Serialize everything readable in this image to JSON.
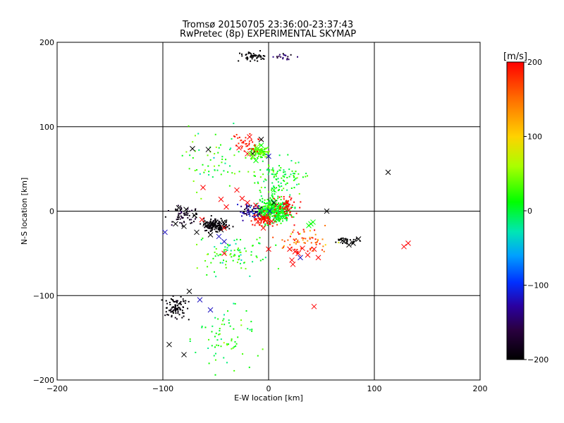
{
  "chart_data": {
    "type": "scatter",
    "title": "Tromsø 20150705 23:36:00-23:37:43",
    "subtitle": "RwPretec (8p) EXPERIMENTAL SKYMAP",
    "xlabel": "E-W location [km]",
    "ylabel": "N-S location [km]",
    "xlim": [
      -200,
      200
    ],
    "ylim": [
      -200,
      200
    ],
    "xticks": [
      -200,
      -100,
      0,
      100,
      200
    ],
    "yticks": [
      -200,
      -100,
      0,
      100,
      200
    ],
    "grid": true,
    "colorbar": {
      "label": "[m/s]",
      "range": [
        -200,
        200
      ],
      "ticks": [
        200,
        100,
        0,
        -100,
        -200
      ],
      "colors": [
        "#ff0000",
        "#ffa500",
        "#ffff00",
        "#00ff00",
        "#00e5c0",
        "#0060ff",
        "#0000cc",
        "#400060",
        "#000000"
      ]
    },
    "markers": {
      "cross": [
        {
          "x": -85,
          "y": 4,
          "v": -200
        },
        {
          "x": -78,
          "y": 2,
          "v": -200
        },
        {
          "x": -70,
          "y": -5,
          "v": -200
        },
        {
          "x": -60,
          "y": -15,
          "v": -200
        },
        {
          "x": -52,
          "y": -18,
          "v": -200
        },
        {
          "x": -45,
          "y": -22,
          "v": -200
        },
        {
          "x": -42,
          "y": -15,
          "v": -200
        },
        {
          "x": -55,
          "y": -28,
          "v": -200
        },
        {
          "x": -68,
          "y": -25,
          "v": -200
        },
        {
          "x": -80,
          "y": -18,
          "v": -200
        },
        {
          "x": -88,
          "y": -15,
          "v": -200
        },
        {
          "x": -72,
          "y": 74,
          "v": -200
        },
        {
          "x": -57,
          "y": 73,
          "v": -200
        },
        {
          "x": -15,
          "y": 68,
          "v": -200
        },
        {
          "x": -7,
          "y": 85,
          "v": -200
        },
        {
          "x": 5,
          "y": 10,
          "v": -200
        },
        {
          "x": 55,
          "y": 0,
          "v": -200
        },
        {
          "x": 70,
          "y": -35,
          "v": -200
        },
        {
          "x": 80,
          "y": -38,
          "v": -200
        },
        {
          "x": 85,
          "y": -33,
          "v": -200
        },
        {
          "x": 76,
          "y": -40,
          "v": -200
        },
        {
          "x": 113,
          "y": 46,
          "v": -200
        },
        {
          "x": -75,
          "y": -95,
          "v": -200
        },
        {
          "x": -94,
          "y": -158,
          "v": -200
        },
        {
          "x": -80,
          "y": -170,
          "v": -200
        },
        {
          "x": -62,
          "y": 28,
          "v": 200
        },
        {
          "x": -30,
          "y": 25,
          "v": 200
        },
        {
          "x": -20,
          "y": 10,
          "v": 200
        },
        {
          "x": -12,
          "y": 7,
          "v": 200
        },
        {
          "x": -5,
          "y": -8,
          "v": 200
        },
        {
          "x": -10,
          "y": -12,
          "v": 200
        },
        {
          "x": 3,
          "y": -12,
          "v": 200
        },
        {
          "x": 20,
          "y": -45,
          "v": 200
        },
        {
          "x": 25,
          "y": -48,
          "v": 200
        },
        {
          "x": 32,
          "y": -44,
          "v": 200
        },
        {
          "x": 37,
          "y": -52,
          "v": 200
        },
        {
          "x": 43,
          "y": -45,
          "v": 200
        },
        {
          "x": 47,
          "y": -55,
          "v": 200
        },
        {
          "x": 22,
          "y": -58,
          "v": 200
        },
        {
          "x": 23,
          "y": -63,
          "v": 200
        },
        {
          "x": 28,
          "y": -50,
          "v": 200
        },
        {
          "x": 128,
          "y": -42,
          "v": 200
        },
        {
          "x": 132,
          "y": -38,
          "v": 200
        },
        {
          "x": 43,
          "y": -113,
          "v": 200
        },
        {
          "x": -42,
          "y": -20,
          "v": 200
        },
        {
          "x": -25,
          "y": 15,
          "v": 200
        },
        {
          "x": -5,
          "y": -20,
          "v": 200
        },
        {
          "x": -45,
          "y": 14,
          "v": 200
        },
        {
          "x": -40,
          "y": 5,
          "v": 200
        },
        {
          "x": -63,
          "y": -10,
          "v": 200
        },
        {
          "x": -28,
          "y": 75,
          "v": 200
        },
        {
          "x": -20,
          "y": 68,
          "v": 200
        },
        {
          "x": -18,
          "y": 88,
          "v": 200
        },
        {
          "x": -42,
          "y": -50,
          "v": 200
        },
        {
          "x": 0,
          "y": -45,
          "v": 200
        },
        {
          "x": -98,
          "y": -25,
          "v": -120
        },
        {
          "x": -47,
          "y": -30,
          "v": -120
        },
        {
          "x": -42,
          "y": -36,
          "v": -120
        },
        {
          "x": -65,
          "y": -105,
          "v": -120
        },
        {
          "x": -55,
          "y": -117,
          "v": -120
        },
        {
          "x": 0,
          "y": 65,
          "v": -120
        },
        {
          "x": 1,
          "y": 0,
          "v": -120
        },
        {
          "x": 30,
          "y": -55,
          "v": -120
        },
        {
          "x": -12,
          "y": 75,
          "v": 40
        },
        {
          "x": -8,
          "y": 72,
          "v": 40
        },
        {
          "x": -18,
          "y": 68,
          "v": 40
        },
        {
          "x": -7,
          "y": 78,
          "v": 10
        },
        {
          "x": -15,
          "y": 65,
          "v": 40
        },
        {
          "x": -12,
          "y": 60,
          "v": 10
        },
        {
          "x": 5,
          "y": 25,
          "v": 10
        },
        {
          "x": 40,
          "y": -15,
          "v": 10
        },
        {
          "x": 42,
          "y": -13,
          "v": 10
        },
        {
          "x": 38,
          "y": -17,
          "v": 10
        },
        {
          "x": -8,
          "y": 0,
          "v": 10
        }
      ]
    }
  }
}
